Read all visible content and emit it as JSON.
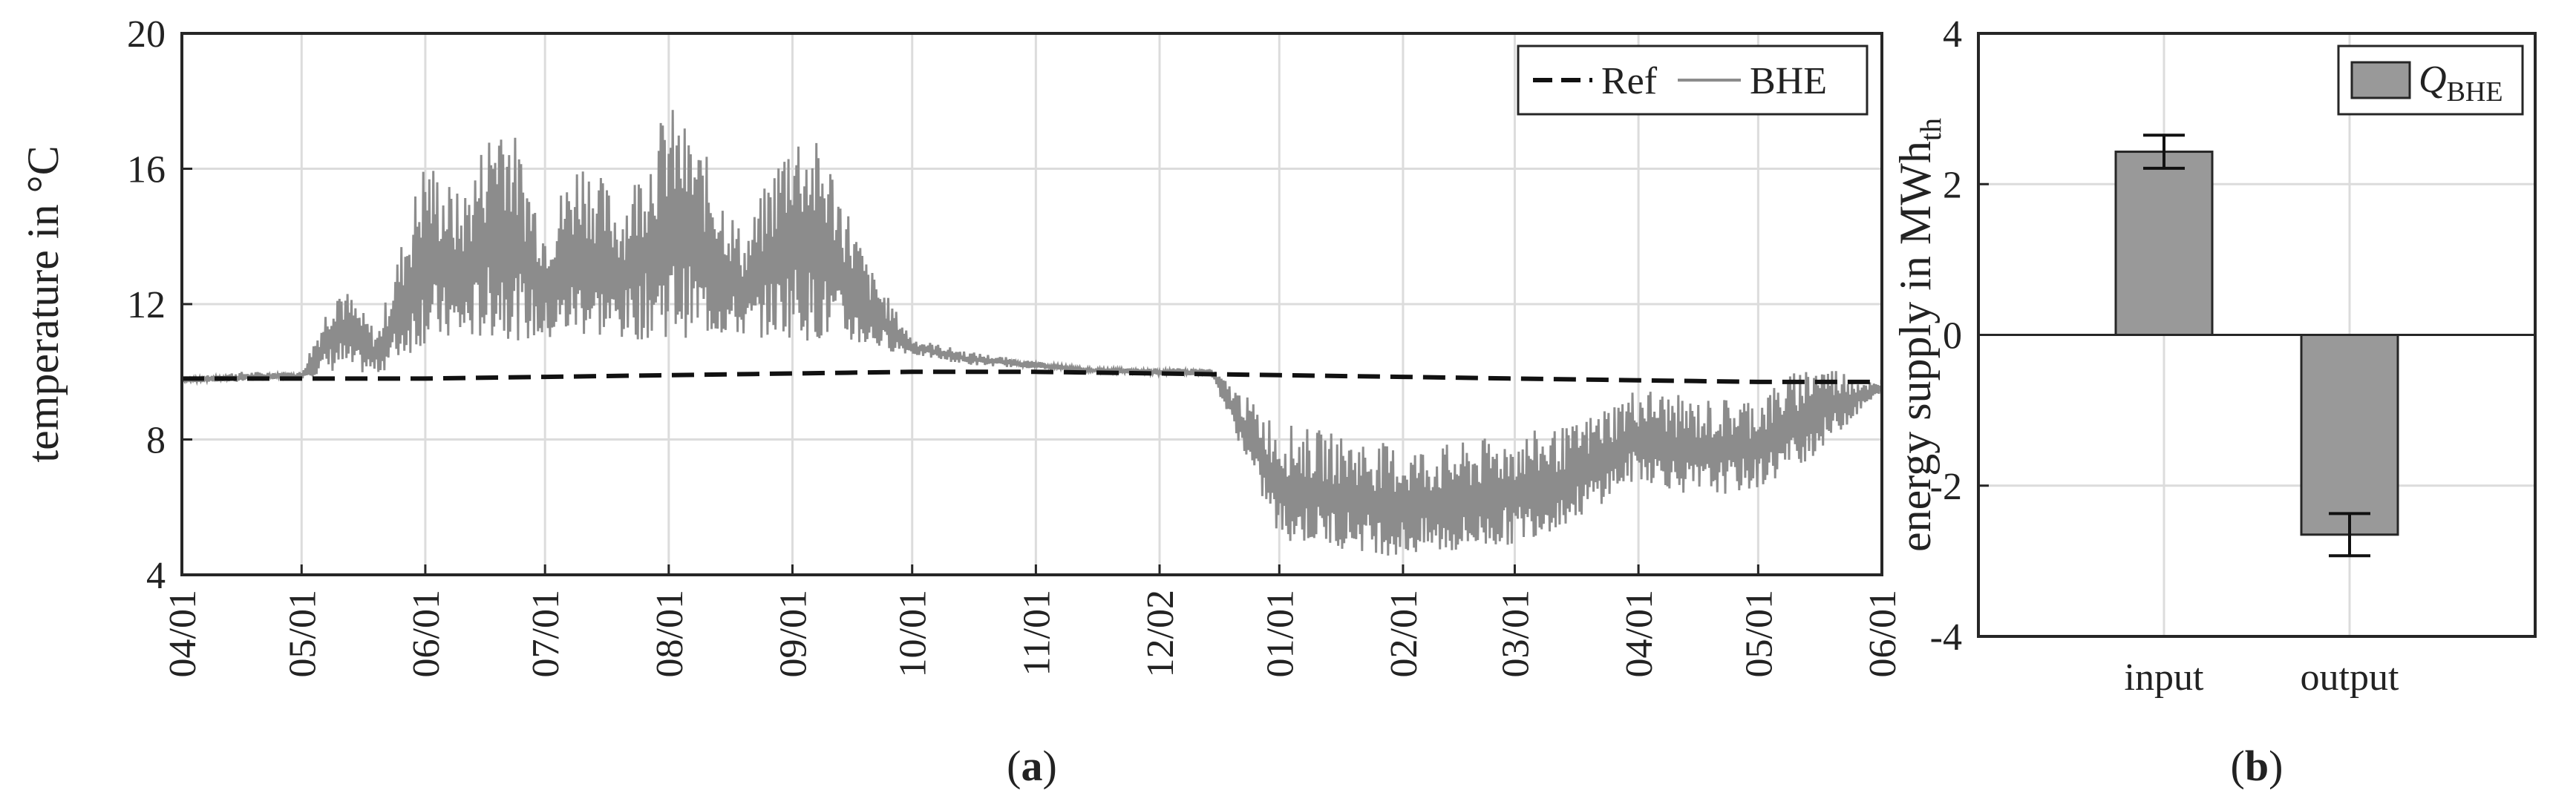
{
  "figure": {
    "caption_a_prefix": "(",
    "caption_a_letter": "a",
    "caption_a_suffix": ")",
    "caption_b_prefix": "(",
    "caption_b_letter": "b",
    "caption_b_suffix": ")"
  },
  "chart_data": [
    {
      "type": "line",
      "ylabel": "temperature in °C",
      "xlabel": "",
      "ylim": [
        4,
        20
      ],
      "yticks": [
        4,
        8,
        12,
        16,
        20
      ],
      "x_tick_labels": [
        "04/01",
        "05/01",
        "06/01",
        "07/01",
        "08/01",
        "09/01",
        "10/01",
        "11/01",
        "12/02",
        "01/01",
        "02/01",
        "03/01",
        "04/01",
        "05/01",
        "06/01"
      ],
      "grid": true,
      "legend_position": "top-right",
      "colors": {
        "Ref": "#111111",
        "BHE": "#8c8c8c"
      },
      "series": [
        {
          "name": "Ref",
          "style": "dashed",
          "x": [
            "04/01",
            "05/01",
            "06/01",
            "07/01",
            "08/01",
            "09/01",
            "10/01",
            "11/01",
            "12/02",
            "01/01",
            "02/01",
            "03/01",
            "04/01",
            "05/01",
            "06/01"
          ],
          "values": [
            9.8,
            9.8,
            9.8,
            9.85,
            9.9,
            9.95,
            10.0,
            10.0,
            9.95,
            9.9,
            9.85,
            9.8,
            9.75,
            9.7,
            9.7
          ]
        },
        {
          "name": "BHE",
          "style": "solid",
          "x": [
            "04/01",
            "04/15",
            "05/01",
            "05/10",
            "05/20",
            "06/01",
            "06/10",
            "06/20",
            "07/01",
            "07/10",
            "07/20",
            "08/01",
            "08/10",
            "08/20",
            "09/01",
            "09/10",
            "09/20",
            "10/01",
            "10/15",
            "11/01",
            "11/15",
            "12/02",
            "12/15",
            "01/01",
            "01/15",
            "02/01",
            "02/15",
            "03/01",
            "03/15",
            "04/01",
            "04/15",
            "05/01",
            "05/15",
            "06/01"
          ],
          "values": [
            9.8,
            9.8,
            9.9,
            11.5,
            10.5,
            14.0,
            12.5,
            13.5,
            12.0,
            14.5,
            12.5,
            14.5,
            13.0,
            12.5,
            14.0,
            13.0,
            12.0,
            10.5,
            10.3,
            10.2,
            10.1,
            10.0,
            10.0,
            6.5,
            6.2,
            5.8,
            6.0,
            6.3,
            6.8,
            8.0,
            7.5,
            7.8,
            9.0,
            9.5
          ],
          "upper_envelope": [
            9.8,
            10.0,
            10.0,
            12.8,
            11.2,
            16.5,
            15.2,
            18.2,
            14.5,
            16.6,
            15.0,
            18.0,
            16.5,
            14.0,
            17.5,
            16.5,
            13.2,
            11.0,
            10.6,
            10.3,
            10.1,
            10.1,
            10.1,
            8.5,
            8.2,
            7.8,
            7.9,
            8.2,
            8.4,
            9.6,
            9.2,
            9.3,
            10.4,
            9.6
          ],
          "lower_envelope": [
            9.7,
            9.7,
            9.8,
            10.0,
            9.9,
            10.8,
            10.8,
            11.0,
            10.8,
            11.0,
            10.9,
            11.0,
            11.0,
            11.0,
            11.0,
            10.8,
            10.7,
            10.5,
            10.2,
            10.1,
            10.0,
            9.9,
            9.9,
            5.0,
            4.8,
            4.5,
            4.6,
            4.9,
            5.5,
            6.8,
            6.3,
            6.5,
            7.5,
            9.4
          ]
        }
      ]
    },
    {
      "type": "bar",
      "ylabel_prefix": "energy supply in MWh",
      "ylabel_sub": "th",
      "ylim": [
        -4,
        4
      ],
      "yticks": [
        -4,
        -2,
        0,
        2,
        4
      ],
      "categories": [
        "input",
        "output"
      ],
      "grid": true,
      "legend_position": "top-right",
      "bar_color": "#999999",
      "series": [
        {
          "name_main": "Q",
          "name_sub": "BHE",
          "values": [
            2.43,
            -2.65
          ],
          "error": [
            0.22,
            0.28
          ]
        }
      ]
    }
  ]
}
